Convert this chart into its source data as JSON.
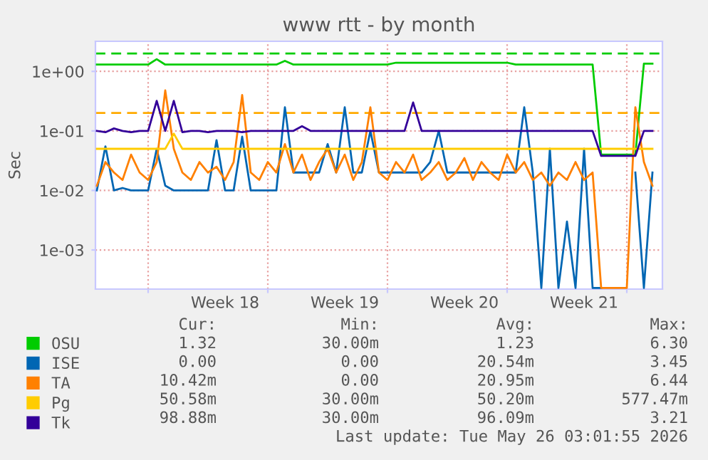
{
  "chart_data": {
    "type": "line",
    "title": "www rtt - by month",
    "ylabel": "Sec",
    "x": [
      "2026-04-24T00:00",
      "2026-04-24T12:00",
      "2026-04-25T00:00",
      "2026-04-25T12:00",
      "2026-04-26T00:00",
      "2026-04-26T12:00",
      "2026-04-27T00:00",
      "2026-04-27T12:00",
      "2026-04-28T00:00",
      "2026-04-28T12:00",
      "2026-04-29T00:00",
      "2026-04-29T12:00",
      "2026-04-30T00:00",
      "2026-04-30T12:00",
      "2026-05-01T00:00",
      "2026-05-01T12:00",
      "2026-05-02T00:00",
      "2026-05-02T12:00",
      "2026-05-03T00:00",
      "2026-05-03T12:00",
      "2026-05-04T00:00",
      "2026-05-04T12:00",
      "2026-05-05T00:00",
      "2026-05-05T12:00",
      "2026-05-06T00:00",
      "2026-05-06T12:00",
      "2026-05-07T00:00",
      "2026-05-07T12:00",
      "2026-05-08T00:00",
      "2026-05-08T12:00",
      "2026-05-09T00:00",
      "2026-05-09T12:00",
      "2026-05-10T00:00",
      "2026-05-10T12:00",
      "2026-05-11T00:00",
      "2026-05-11T12:00",
      "2026-05-12T00:00",
      "2026-05-12T12:00",
      "2026-05-13T00:00",
      "2026-05-13T12:00",
      "2026-05-14T00:00",
      "2026-05-14T12:00",
      "2026-05-15T00:00",
      "2026-05-15T12:00",
      "2026-05-16T00:00",
      "2026-05-16T12:00",
      "2026-05-17T00:00",
      "2026-05-17T12:00",
      "2026-05-18T00:00",
      "2026-05-18T12:00",
      "2026-05-19T00:00",
      "2026-05-19T12:00",
      "2026-05-20T00:00",
      "2026-05-20T12:00",
      "2026-05-21T00:00",
      "2026-05-21T12:00",
      "2026-05-22T00:00",
      "2026-05-22T12:00",
      "2026-05-23T00:00",
      "2026-05-23T12:00",
      "2026-05-24T00:00",
      "2026-05-24T12:00",
      "2026-05-25T00:00",
      "2026-05-25T12:00",
      "2026-05-26T00:00",
      "2026-05-26T12:00"
    ],
    "series": [
      {
        "name": "OSU",
        "color": "#00cc00",
        "values": [
          1.3,
          1.3,
          1.3,
          1.3,
          1.3,
          1.3,
          1.3,
          1.6,
          1.3,
          1.3,
          1.3,
          1.3,
          1.3,
          1.3,
          1.3,
          1.3,
          1.3,
          1.3,
          1.3,
          1.3,
          1.3,
          1.3,
          1.5,
          1.3,
          1.3,
          1.3,
          1.3,
          1.3,
          1.3,
          1.3,
          1.3,
          1.3,
          1.3,
          1.3,
          1.3,
          1.4,
          1.4,
          1.4,
          1.4,
          1.4,
          1.4,
          1.4,
          1.4,
          1.4,
          1.4,
          1.4,
          1.4,
          1.4,
          1.4,
          1.3,
          1.3,
          1.3,
          1.3,
          1.3,
          1.3,
          1.3,
          1.3,
          1.3,
          1.3,
          0.04,
          0.04,
          0.04,
          0.04,
          0.04,
          1.35,
          1.35
        ]
      },
      {
        "name": "ISE",
        "color": "#0066b3",
        "values": [
          0.01,
          0.055,
          0.01,
          0.011,
          0.01,
          0.01,
          0.01,
          0.05,
          0.012,
          0.01,
          0.01,
          0.01,
          0.01,
          0.01,
          0.07,
          0.01,
          0.01,
          0.08,
          0.01,
          0.01,
          0.01,
          0.01,
          0.25,
          0.02,
          0.02,
          0.02,
          0.02,
          0.06,
          0.02,
          0.25,
          0.02,
          0.02,
          0.1,
          0.02,
          0.02,
          0.02,
          0.02,
          0.02,
          0.02,
          0.03,
          0.1,
          0.02,
          0.02,
          0.02,
          0.02,
          0.02,
          0.02,
          0.02,
          0.02,
          0.02,
          0.25,
          0.02,
          0.00023,
          0.05,
          0.00023,
          0.003,
          0.00023,
          0.05,
          0.00023,
          0.00023,
          null,
          null,
          null,
          0.02,
          0.00023,
          0.02
        ]
      },
      {
        "name": "TA",
        "color": "#ff8000",
        "values": [
          0.012,
          0.03,
          0.02,
          0.015,
          0.04,
          0.02,
          0.015,
          0.03,
          0.48,
          0.05,
          0.02,
          0.015,
          0.03,
          0.02,
          0.025,
          0.015,
          0.03,
          0.4,
          0.02,
          0.015,
          0.03,
          0.02,
          0.06,
          0.02,
          0.04,
          0.015,
          0.03,
          0.05,
          0.02,
          0.04,
          0.015,
          0.03,
          0.25,
          0.02,
          0.015,
          0.03,
          0.02,
          0.04,
          0.015,
          0.02,
          0.03,
          0.015,
          0.02,
          0.035,
          0.015,
          0.03,
          0.02,
          0.015,
          0.04,
          0.02,
          0.03,
          0.015,
          0.02,
          0.012,
          0.02,
          0.015,
          0.03,
          0.015,
          0.02,
          0.00023,
          0.00023,
          0.00023,
          0.00023,
          0.25,
          0.03,
          0.012
        ]
      },
      {
        "name": "Pg",
        "color": "#ffcc00",
        "values": [
          0.05,
          0.05,
          0.05,
          0.05,
          0.05,
          0.05,
          0.05,
          0.05,
          0.05,
          0.09,
          0.05,
          0.05,
          0.05,
          0.05,
          0.05,
          0.05,
          0.05,
          0.05,
          0.05,
          0.05,
          0.05,
          0.05,
          0.05,
          0.05,
          0.05,
          0.05,
          0.05,
          0.05,
          0.05,
          0.05,
          0.05,
          0.05,
          0.05,
          0.05,
          0.05,
          0.05,
          0.05,
          0.05,
          0.05,
          0.05,
          0.05,
          0.05,
          0.05,
          0.05,
          0.05,
          0.05,
          0.05,
          0.05,
          0.05,
          0.05,
          0.05,
          0.05,
          0.05,
          0.05,
          0.05,
          0.05,
          0.05,
          0.05,
          0.05,
          0.05,
          0.05,
          0.05,
          0.05,
          0.05,
          0.05,
          0.05
        ]
      },
      {
        "name": "Tk",
        "color": "#330099",
        "values": [
          0.1,
          0.095,
          0.11,
          0.1,
          0.095,
          0.1,
          0.1,
          0.32,
          0.1,
          0.32,
          0.095,
          0.1,
          0.1,
          0.095,
          0.1,
          0.1,
          0.1,
          0.095,
          0.1,
          0.1,
          0.1,
          0.1,
          0.1,
          0.1,
          0.12,
          0.1,
          0.1,
          0.1,
          0.1,
          0.1,
          0.1,
          0.1,
          0.1,
          0.1,
          0.1,
          0.1,
          0.1,
          0.3,
          0.1,
          0.1,
          0.1,
          0.1,
          0.1,
          0.1,
          0.1,
          0.1,
          0.1,
          0.1,
          0.1,
          0.1,
          0.1,
          0.1,
          0.1,
          0.1,
          0.1,
          0.1,
          0.1,
          0.1,
          0.1,
          0.038,
          0.038,
          0.038,
          0.038,
          0.038,
          0.1,
          0.1
        ]
      }
    ],
    "log": "y",
    "ylim": [
      0.00022,
      3.2
    ],
    "yticks": [
      {
        "value": 0.001,
        "label": "1e-03"
      },
      {
        "value": 0.01,
        "label": "1e-02"
      },
      {
        "value": 0.1,
        "label": "1e-01"
      },
      {
        "value": 1,
        "label": "1e+00"
      }
    ],
    "xlim": [
      "2026-04-23T22:00",
      "2026-05-27T02:00"
    ],
    "xticks": [
      {
        "value": "2026-04-27",
        "label": null
      },
      {
        "value": "2026-05-04",
        "label": null
      },
      {
        "value": "2026-05-11",
        "label": null
      },
      {
        "value": "2026-05-18",
        "label": null
      },
      {
        "value": "2026-05-25",
        "label": null
      },
      {
        "value": "2026-05-01T12:00",
        "label": "Week 18"
      },
      {
        "value": "2026-05-08T12:00",
        "label": "Week 19"
      },
      {
        "value": "2026-05-15T12:00",
        "label": "Week 20"
      },
      {
        "value": "2026-05-22T12:00",
        "label": "Week 21"
      }
    ],
    "ref_lines": [
      {
        "axis": "y",
        "value": 2,
        "color": "#00cc00",
        "line_style": "dashed"
      },
      {
        "axis": "y",
        "value": 0.2,
        "color": "#ffaa00",
        "line_style": "dashed"
      }
    ],
    "grid": true,
    "legend": "bottom",
    "marker": "none",
    "line_style": "solid",
    "annotations": [
      "Cur:",
      "Min:",
      "Avg:",
      "Max:",
      "1.32",
      "30.00m",
      "1.23",
      "6.30",
      "0.00",
      "0.00",
      "20.54m",
      "3.45",
      "10.42m",
      "0.00",
      "20.95m",
      "6.44",
      "50.58m",
      "30.00m",
      "50.20m",
      "577.47m",
      "98.88m",
      "30.00m",
      "96.09m",
      "3.21",
      "Last update: Tue May 26 03:01:55 2026"
    ]
  }
}
